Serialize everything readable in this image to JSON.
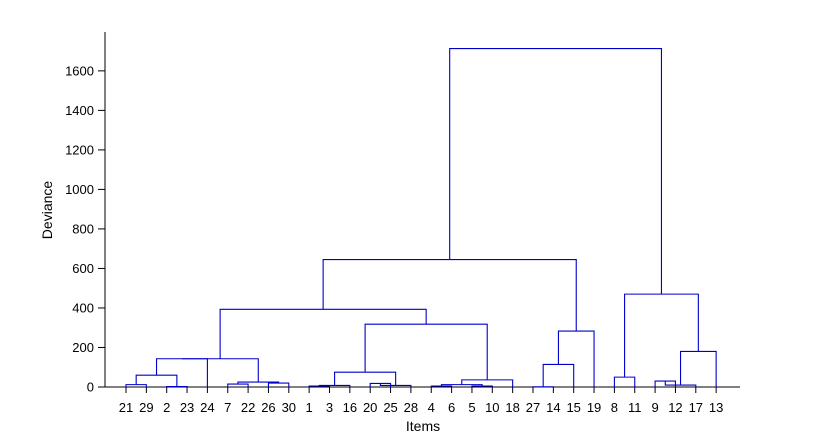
{
  "chart_data": {
    "type": "dendrogram",
    "xlabel": "Items",
    "ylabel": "Deviance",
    "ylim": [
      0,
      1750
    ],
    "yticks": [
      0,
      200,
      400,
      600,
      800,
      1000,
      1200,
      1400,
      1600
    ],
    "line_color": "#0000cc",
    "leaf_order": [
      "21",
      "29",
      "2",
      "23",
      "24",
      "7",
      "22",
      "26",
      "30",
      "1",
      "3",
      "16",
      "20",
      "25",
      "28",
      "4",
      "6",
      "5",
      "10",
      "18",
      "27",
      "14",
      "15",
      "19",
      "8",
      "11",
      "9",
      "12",
      "17",
      "13"
    ],
    "merges": [
      {
        "left": "21",
        "right": "29",
        "height": 12
      },
      {
        "left": "2",
        "right": "23",
        "height": 2
      },
      {
        "left": "21,29",
        "right": "2,23",
        "height": 60
      },
      {
        "left": "21,29,2,23",
        "right": "24",
        "height": 143
      },
      {
        "left": "7",
        "right": "22",
        "height": 15
      },
      {
        "left": "26",
        "right": "30",
        "height": 20
      },
      {
        "left": "7,22",
        "right": "26,30",
        "height": 25
      },
      {
        "left": "21,29,2,23,24",
        "right": "7,22,26,30",
        "height": 143
      },
      {
        "left": "1",
        "right": "3",
        "height": 5
      },
      {
        "left": "1,3",
        "right": "16",
        "height": 8
      },
      {
        "left": "20",
        "right": "25",
        "height": 18
      },
      {
        "left": "20,25",
        "right": "28",
        "height": 8
      },
      {
        "left": "1,3,16",
        "right": "20,25,28",
        "height": 75
      },
      {
        "left": "4",
        "right": "6",
        "height": 5
      },
      {
        "left": "5",
        "right": "10",
        "height": 5
      },
      {
        "left": "4,6",
        "right": "5,10",
        "height": 12
      },
      {
        "left": "4,6,5,10",
        "right": "18",
        "height": 36
      },
      {
        "left": "1,3,16,20,25,28",
        "right": "4,6,5,10,18",
        "height": 318
      },
      {
        "left": "group-A",
        "right": "group-B",
        "height": 393
      },
      {
        "left": "27",
        "right": "14",
        "height": 1
      },
      {
        "left": "27,14",
        "right": "15",
        "height": 114
      },
      {
        "left": "27,14,15",
        "right": "19",
        "height": 283
      },
      {
        "left": "left-cluster",
        "right": "27,14,15,19",
        "height": 645
      },
      {
        "left": "8",
        "right": "11",
        "height": 50
      },
      {
        "left": "9",
        "right": "12",
        "height": 30
      },
      {
        "left": "9,12",
        "right": "17",
        "height": 10
      },
      {
        "left": "9,12,17",
        "right": "13",
        "height": 180
      },
      {
        "left": "8,11",
        "right": "9,12,17,13",
        "height": 470
      },
      {
        "left": "main-cluster",
        "right": "right-cluster",
        "height": 1713
      }
    ]
  }
}
